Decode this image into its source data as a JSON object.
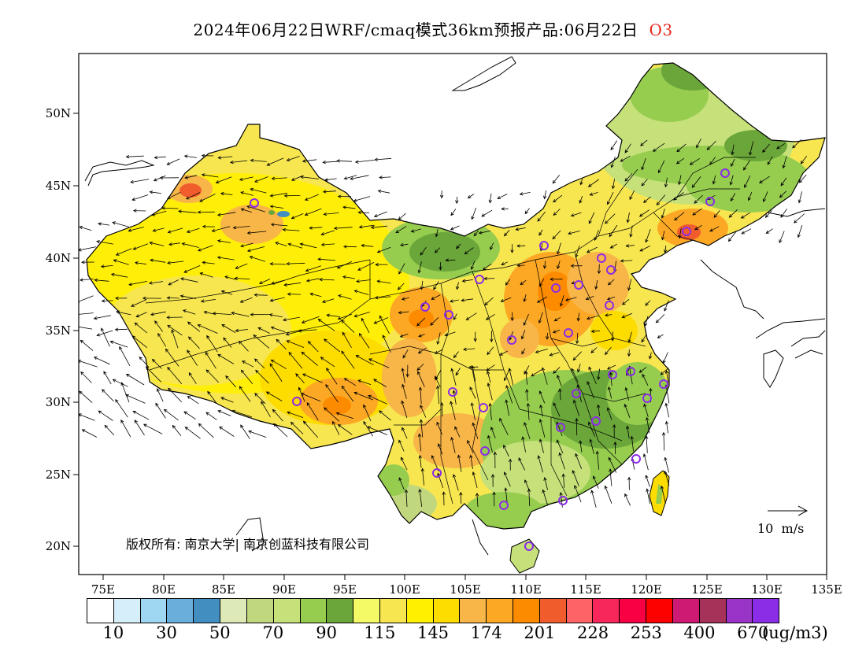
{
  "title": {
    "main": "2024年06月22日WRF/cmaq模式36km预报产品:06月22日",
    "species": "O3"
  },
  "map": {
    "lat_labels": [
      "50N",
      "45N",
      "40N",
      "35N",
      "30N",
      "25N",
      "20N"
    ],
    "lon_labels": [
      "75E",
      "80E",
      "85E",
      "90E",
      "95E",
      "100E",
      "105E",
      "110E",
      "115E",
      "120E",
      "125E",
      "130E",
      "135E"
    ],
    "copyright": "版权所有: 南京大学| 南京创蓝科技有限公司",
    "wind_scale_label": "10  m/s"
  },
  "legend": {
    "colors": [
      "#ffffff",
      "#d6eefa",
      "#9fd6f2",
      "#6aaedb",
      "#438ec0",
      "#dde9b6",
      "#c1d77d",
      "#c6e17a",
      "#96cd4f",
      "#6aa63a",
      "#f4fa66",
      "#f7e650",
      "#fff000",
      "#fddc00",
      "#f8b548",
      "#fca824",
      "#fc8b00",
      "#f05c2c",
      "#fd6468",
      "#f7275b",
      "#f90045",
      "#fd0000",
      "#cf1a74",
      "#a6325a",
      "#9a33c8",
      "#8b2de6"
    ],
    "labels": [
      "10",
      "30",
      "50",
      "70",
      "90",
      "115",
      "145",
      "174",
      "201",
      "228",
      "253",
      "400",
      "670"
    ],
    "unit": "(ug/m3)"
  }
}
